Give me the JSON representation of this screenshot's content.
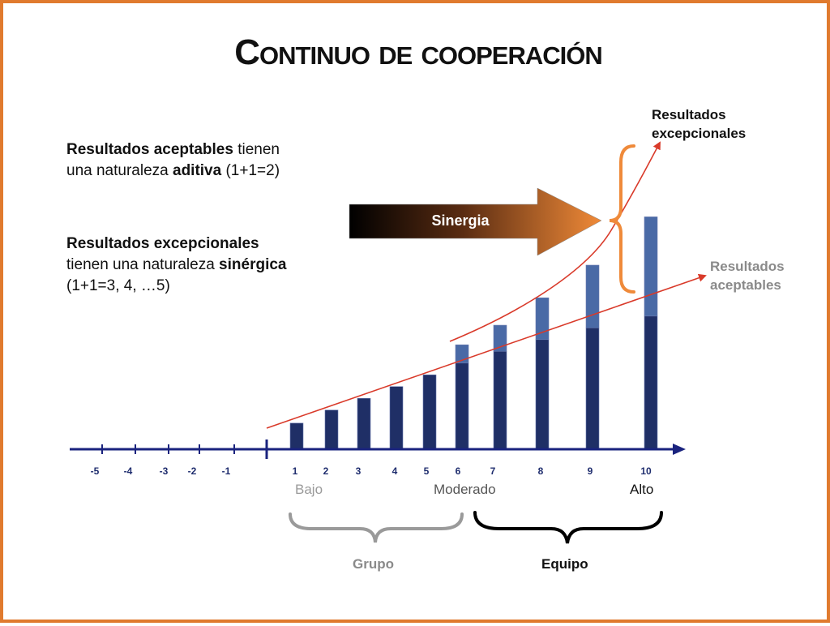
{
  "title": "Continuo de cooperación",
  "description_acceptable": {
    "bold": "Resultados aceptables",
    "rest1": " tienen",
    "line2_a": "una naturaleza ",
    "line2_bold": "aditiva",
    "line2_b": " (1+1=2)"
  },
  "description_exceptional": {
    "bold": "Resultados excepcionales",
    "line2_a": "tienen una naturaleza ",
    "line2_bold": "sinérgica",
    "line3": "(1+1=3, 4, …5)"
  },
  "arrow_label": "Sinergia",
  "label_exceptional": [
    "Resultados",
    "excepcionales"
  ],
  "label_acceptable": [
    "Resultados",
    "aceptables"
  ],
  "axis": {
    "ticks": [
      "-5",
      "-4",
      "-3",
      "-2",
      "-1",
      "1",
      "2",
      "3",
      "4",
      "5",
      "6",
      "7",
      "8",
      "9",
      "10"
    ]
  },
  "levels": {
    "low": "Bajo",
    "moderate": "Moderado",
    "high": "Alto"
  },
  "groups": {
    "group": "Grupo",
    "team": "Equipo"
  },
  "colors": {
    "border": "#e07a2e",
    "bar_dark": "#1f2f66",
    "bar_light": "#4a6aa6",
    "trend": "#d93a2a",
    "brace_orange": "#ef8a3a",
    "axis": "#1a237e",
    "gray_text": "#8a8a8a"
  },
  "chart_data": {
    "type": "bar",
    "categories": [
      "1",
      "2",
      "3",
      "4",
      "5",
      "6",
      "7",
      "8",
      "9",
      "10"
    ],
    "series": [
      {
        "values": [
          1,
          1.5,
          1.95,
          2.4,
          2.85,
          3.3,
          3.75,
          4.2,
          4.65,
          5.1
        ]
      },
      {
        "values": [
          0,
          0,
          0,
          0,
          0,
          0.7,
          1.0,
          1.6,
          2.4,
          3.8
        ]
      }
    ]
  }
}
